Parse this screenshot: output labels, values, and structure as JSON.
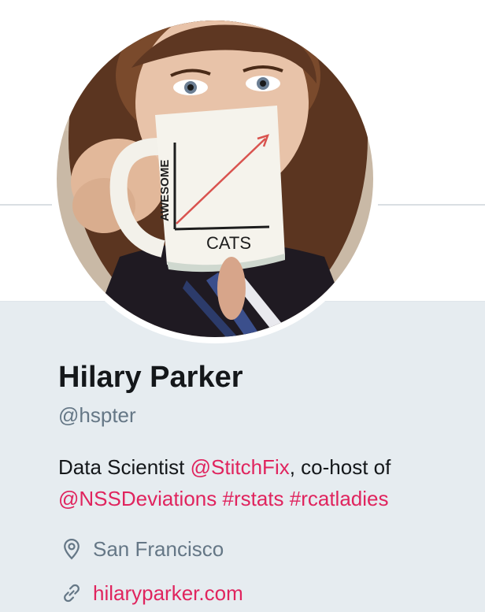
{
  "profile": {
    "name": "Hilary Parker",
    "handle": "@hspter",
    "avatar_alt": "Profile photo",
    "bio": {
      "prefix": "Data Scientist ",
      "mention_1": "@StitchFix",
      "middle": ", co-host of",
      "mention_2": "@NSSDeviations",
      "hashtag_1": "#rstats",
      "hashtag_2": "#rcatladies"
    },
    "location": "San Francisco",
    "website": "hilaryparker.com"
  },
  "avatar_image": {
    "mug_text_y": "AWESOME",
    "mug_text_x": "CATS"
  },
  "icons": {
    "location": "location-pin-icon",
    "website": "link-icon"
  },
  "colors": {
    "accent": "#e0245e",
    "text_primary": "#14171a",
    "text_secondary": "#657786",
    "body_background": "#e6ecf0"
  }
}
